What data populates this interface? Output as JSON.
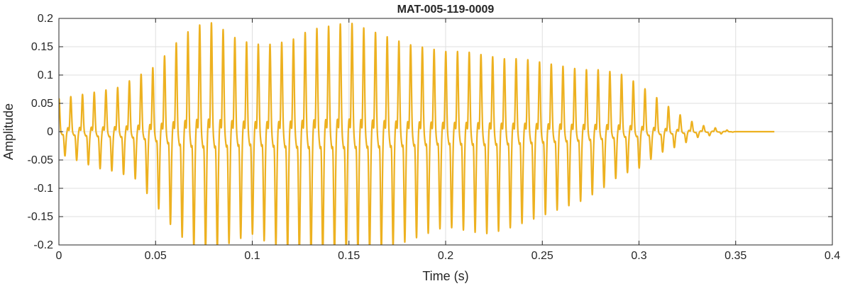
{
  "chart_data": {
    "type": "line",
    "title": "MAT-005-119-0009",
    "xlabel": "Time (s)",
    "ylabel": "Amplitude",
    "xlim": [
      0,
      0.4
    ],
    "ylim": [
      -0.2,
      0.2
    ],
    "grid": true,
    "x_ticks": [
      0,
      0.05,
      0.1,
      0.15,
      0.2,
      0.25,
      0.3,
      0.35,
      0.4
    ],
    "x_tick_labels": [
      "0",
      "0.05",
      "0.1",
      "0.15",
      "0.2",
      "0.25",
      "0.3",
      "0.35",
      "0.4"
    ],
    "y_ticks": [
      -0.2,
      -0.15,
      -0.1,
      -0.05,
      0,
      0.05,
      0.1,
      0.15,
      0.2
    ],
    "y_tick_labels": [
      "-0.2",
      "-0.15",
      "-0.1",
      "-0.05",
      "0",
      "0.05",
      "0.1",
      "0.15",
      "0.2"
    ],
    "series": [
      {
        "color": "#EDB120",
        "signal_end_time": 0.37,
        "envelope": {
          "t": [
            0,
            0.01,
            0.02,
            0.03,
            0.04,
            0.05,
            0.06,
            0.07,
            0.08,
            0.09,
            0.1,
            0.11,
            0.12,
            0.13,
            0.14,
            0.15,
            0.16,
            0.17,
            0.18,
            0.19,
            0.2,
            0.21,
            0.22,
            0.23,
            0.24,
            0.25,
            0.26,
            0.27,
            0.28,
            0.29,
            0.3,
            0.31,
            0.32,
            0.33,
            0.34,
            0.35,
            0.37
          ],
          "pos": [
            0.045,
            0.05,
            0.055,
            0.06,
            0.075,
            0.09,
            0.12,
            0.145,
            0.15,
            0.13,
            0.12,
            0.12,
            0.125,
            0.14,
            0.145,
            0.15,
            0.14,
            0.13,
            0.12,
            0.115,
            0.11,
            0.11,
            0.105,
            0.1,
            0.1,
            0.095,
            0.09,
            0.085,
            0.085,
            0.08,
            0.065,
            0.045,
            0.025,
            0.01,
            0.005,
            0.0,
            0.0
          ],
          "neg": [
            -0.03,
            -0.04,
            -0.05,
            -0.055,
            -0.065,
            -0.1,
            -0.135,
            -0.16,
            -0.165,
            -0.15,
            -0.14,
            -0.155,
            -0.165,
            -0.17,
            -0.17,
            -0.17,
            -0.165,
            -0.16,
            -0.15,
            -0.14,
            -0.13,
            -0.135,
            -0.14,
            -0.135,
            -0.125,
            -0.115,
            -0.105,
            -0.095,
            -0.08,
            -0.06,
            -0.05,
            -0.03,
            -0.02,
            -0.008,
            -0.004,
            0.0,
            0.0
          ]
        }
      }
    ]
  }
}
